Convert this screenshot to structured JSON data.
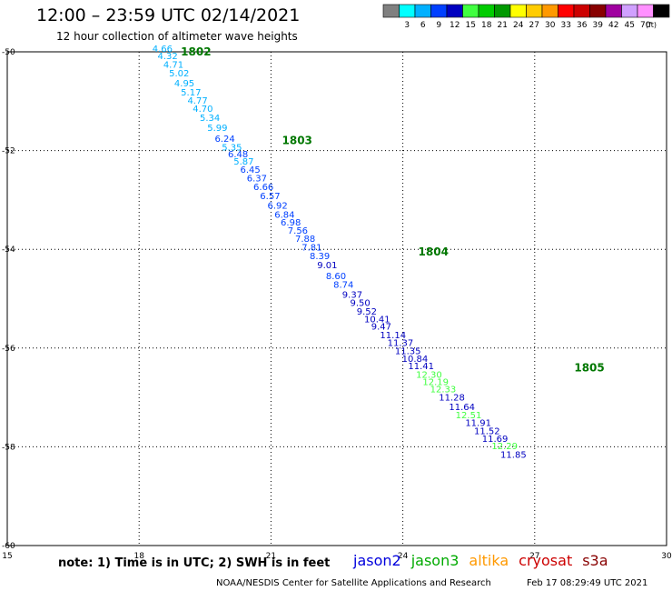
{
  "header": {
    "title": "12:00 – 23:59 UTC 02/14/2021",
    "subtitle": "12 hour collection of altimeter wave heights"
  },
  "footer": {
    "note": "note: 1) Time is in UTC; 2) SWH is in feet",
    "credit": "NOAA/NESDIS Center for Satellite Applications and Research",
    "timestamp": "Feb 17 08:29:49 UTC 2021"
  },
  "satellites": [
    {
      "name": "jason2",
      "color": "#0000dd"
    },
    {
      "name": "jason3",
      "color": "#00aa00"
    },
    {
      "name": "altika",
      "color": "#ff9900"
    },
    {
      "name": "cryosat",
      "color": "#cc0000"
    },
    {
      "name": "s3a",
      "color": "#880000"
    }
  ],
  "chart_data": {
    "type": "scatter",
    "xlim": [
      15,
      30
    ],
    "ylim": [
      -60,
      -50
    ],
    "x_ticks": [
      "15",
      "18",
      "21",
      "24",
      "27",
      "30"
    ],
    "y_ticks": [
      "-50",
      "-52",
      "-54",
      "-56",
      "-58",
      "-60"
    ],
    "grid": true,
    "legend": {
      "position": "top-right",
      "unit": "(ft)",
      "bins": [
        {
          "label": "",
          "color": "#808080"
        },
        {
          "label": "3",
          "color": "#00ffff"
        },
        {
          "label": "6",
          "color": "#00b0ff"
        },
        {
          "label": "9",
          "color": "#0040ff"
        },
        {
          "label": "12",
          "color": "#0000c0"
        },
        {
          "label": "15",
          "color": "#40ff40"
        },
        {
          "label": "18",
          "color": "#00cc00"
        },
        {
          "label": "21",
          "color": "#009900"
        },
        {
          "label": "24",
          "color": "#ffff00"
        },
        {
          "label": "27",
          "color": "#ffcc00"
        },
        {
          "label": "30",
          "color": "#ff9900"
        },
        {
          "label": "33",
          "color": "#ff0000"
        },
        {
          "label": "36",
          "color": "#cc0000"
        },
        {
          "label": "39",
          "color": "#880000"
        },
        {
          "label": "42",
          "color": "#a000a0"
        },
        {
          "label": "45",
          "color": "#d0a0ff"
        },
        {
          "label": "70",
          "color": "#ff90ff"
        },
        {
          "label": "",
          "color": "#000000"
        }
      ]
    },
    "time_labels": [
      {
        "label": "1802",
        "x": 18.95,
        "y": -50.0
      },
      {
        "label": "1803",
        "x": 21.25,
        "y": -51.8
      },
      {
        "label": "1804",
        "x": 24.35,
        "y": -54.05
      },
      {
        "label": "1805",
        "x": 27.9,
        "y": -56.4
      }
    ],
    "points": [
      {
        "x": 18.3,
        "y": -50.0,
        "v": "4.66"
      },
      {
        "x": 18.42,
        "y": -50.15,
        "v": "4.32"
      },
      {
        "x": 18.55,
        "y": -50.32,
        "v": "4.71"
      },
      {
        "x": 18.68,
        "y": -50.5,
        "v": "5.02"
      },
      {
        "x": 18.8,
        "y": -50.7,
        "v": "4.95"
      },
      {
        "x": 18.95,
        "y": -50.88,
        "v": "5.17"
      },
      {
        "x": 19.1,
        "y": -51.05,
        "v": "4.77"
      },
      {
        "x": 19.22,
        "y": -51.22,
        "v": "4.70"
      },
      {
        "x": 19.38,
        "y": -51.4,
        "v": "5.34"
      },
      {
        "x": 19.55,
        "y": -51.6,
        "v": "5.99"
      },
      {
        "x": 19.72,
        "y": -51.82,
        "v": "6.24"
      },
      {
        "x": 19.88,
        "y": -52.0,
        "v": "5.35"
      },
      {
        "x": 20.02,
        "y": -52.14,
        "v": "6.48"
      },
      {
        "x": 20.15,
        "y": -52.28,
        "v": "5.87"
      },
      {
        "x": 20.3,
        "y": -52.45,
        "v": "6.45"
      },
      {
        "x": 20.45,
        "y": -52.62,
        "v": "6.37"
      },
      {
        "x": 20.6,
        "y": -52.8,
        "v": "6.66"
      },
      {
        "x": 20.75,
        "y": -52.98,
        "v": "6.57"
      },
      {
        "x": 20.92,
        "y": -53.18,
        "v": "6.92"
      },
      {
        "x": 21.08,
        "y": -53.36,
        "v": "6.84"
      },
      {
        "x": 21.22,
        "y": -53.52,
        "v": "6.98"
      },
      {
        "x": 21.38,
        "y": -53.68,
        "v": "7.56"
      },
      {
        "x": 21.55,
        "y": -53.85,
        "v": "7.88"
      },
      {
        "x": 21.7,
        "y": -54.02,
        "v": "7.81"
      },
      {
        "x": 21.88,
        "y": -54.2,
        "v": "8.39"
      },
      {
        "x": 22.05,
        "y": -54.38,
        "v": "9.01"
      },
      {
        "x": 22.25,
        "y": -54.6,
        "v": "8.60"
      },
      {
        "x": 22.42,
        "y": -54.78,
        "v": "8.74"
      },
      {
        "x": 22.62,
        "y": -54.98,
        "v": "9.37"
      },
      {
        "x": 22.8,
        "y": -55.15,
        "v": "9.50"
      },
      {
        "x": 22.95,
        "y": -55.32,
        "v": "9.52"
      },
      {
        "x": 23.12,
        "y": -55.48,
        "v": "10.41"
      },
      {
        "x": 23.28,
        "y": -55.63,
        "v": "9.47"
      },
      {
        "x": 23.48,
        "y": -55.8,
        "v": "11.14"
      },
      {
        "x": 23.65,
        "y": -55.96,
        "v": "11.37"
      },
      {
        "x": 23.82,
        "y": -56.12,
        "v": "11.35"
      },
      {
        "x": 23.98,
        "y": -56.28,
        "v": "10.84"
      },
      {
        "x": 24.12,
        "y": -56.43,
        "v": "11.41"
      },
      {
        "x": 24.3,
        "y": -56.6,
        "v": "12.30"
      },
      {
        "x": 24.45,
        "y": -56.75,
        "v": "12.19"
      },
      {
        "x": 24.62,
        "y": -56.9,
        "v": "12.33"
      },
      {
        "x": 24.82,
        "y": -57.06,
        "v": "11.28"
      },
      {
        "x": 25.05,
        "y": -57.26,
        "v": "11.64"
      },
      {
        "x": 25.2,
        "y": -57.42,
        "v": "12.51"
      },
      {
        "x": 25.42,
        "y": -57.58,
        "v": "11.91"
      },
      {
        "x": 25.62,
        "y": -57.74,
        "v": "11.52"
      },
      {
        "x": 25.8,
        "y": -57.9,
        "v": "11.69"
      },
      {
        "x": 26.02,
        "y": -58.05,
        "v": "12.29"
      },
      {
        "x": 26.22,
        "y": -58.22,
        "v": "11.85"
      }
    ]
  }
}
